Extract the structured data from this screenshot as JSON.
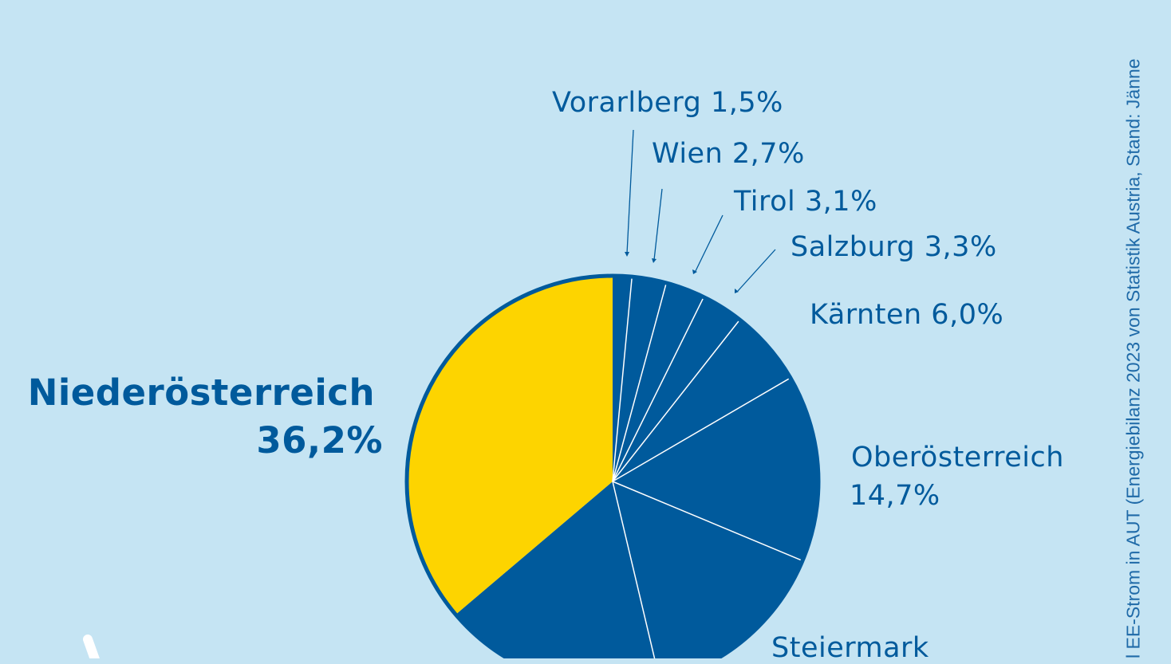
{
  "chart_data": {
    "type": "pie",
    "start": "top",
    "direction": "clockwise",
    "slices": [
      {
        "name": "Vorarlberg",
        "label": "Vorarlberg 1,5%",
        "value": 1.5,
        "color": "#005a9c"
      },
      {
        "name": "Wien",
        "label": "Wien 2,7%",
        "value": 2.7,
        "color": "#005a9c"
      },
      {
        "name": "Tirol",
        "label": "Tirol 3,1%",
        "value": 3.1,
        "color": "#005a9c"
      },
      {
        "name": "Salzburg",
        "label": "Salzburg 3,3%",
        "value": 3.3,
        "color": "#005a9c"
      },
      {
        "name": "Kärnten",
        "label": "Kärnten 6,0%",
        "value": 6.0,
        "color": "#005a9c"
      },
      {
        "name": "Oberösterreich",
        "label": "Oberösterreich",
        "value_label": "14,7%",
        "value": 14.7,
        "color": "#005a9c"
      },
      {
        "name": "Steiermark",
        "label": "Steiermark",
        "value": 15.0,
        "color": "#005a9c"
      },
      {
        "name": "",
        "value": 17.5,
        "color": "#005a9c"
      },
      {
        "name": "Niederösterreich",
        "label": "Niederösterreich",
        "value_label": "36,2%",
        "value": 36.2,
        "color": "#fdd400"
      }
    ],
    "source_note": "l EE-Strom in AUT (Energiebilanz 2023 von Statistik Austria, Stand: Jänne"
  },
  "colors": {
    "background": "#c5e4f3",
    "primary": "#005a9c",
    "highlight": "#fdd400"
  }
}
